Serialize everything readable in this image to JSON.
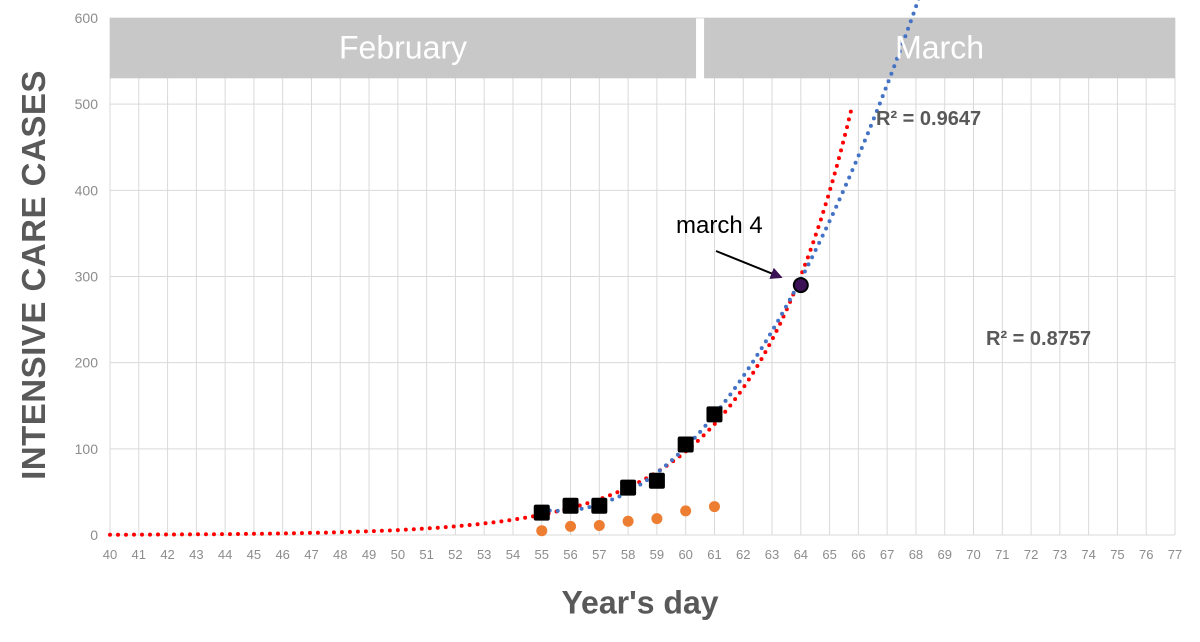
{
  "chart_data": {
    "type": "scatter",
    "title": "",
    "xlabel": "Year's day",
    "ylabel": "INTENSIVE CARE CASES",
    "xlim": [
      40,
      77
    ],
    "ylim": [
      0,
      600
    ],
    "x_ticks": [
      40,
      41,
      42,
      43,
      44,
      45,
      46,
      47,
      48,
      49,
      50,
      51,
      52,
      53,
      54,
      55,
      56,
      57,
      58,
      59,
      60,
      61,
      62,
      63,
      64,
      65,
      66,
      67,
      68,
      69,
      70,
      71,
      72,
      73,
      74,
      75,
      76,
      77
    ],
    "y_ticks": [
      0,
      100,
      200,
      300,
      400,
      500,
      600
    ],
    "grid": true,
    "month_bands": [
      {
        "label": "February",
        "x_range": [
          40,
          60.5
        ]
      },
      {
        "label": "March",
        "x_range": [
          60.5,
          77
        ]
      }
    ],
    "series": [
      {
        "marker": "square",
        "color": "#000000",
        "x": [
          55,
          56,
          57,
          58,
          59,
          60,
          61
        ],
        "y": [
          26,
          34,
          34,
          55,
          63,
          105,
          140
        ]
      },
      {
        "marker": "circle",
        "color": "#ed7d31",
        "x": [
          55,
          56,
          57,
          58,
          59,
          60,
          61
        ],
        "y": [
          5,
          10,
          11,
          16,
          19,
          28,
          33
        ]
      },
      {
        "marker": "circle-highlight",
        "color": "#3b1054",
        "x": [
          64
        ],
        "y": [
          290
        ]
      }
    ],
    "trendlines": [
      {
        "fit": "exponential",
        "color": "#ff0000",
        "style": "dotted",
        "x_range": [
          40,
          66
        ],
        "r2_label": "R² = 0.9647"
      },
      {
        "fit": "polynomial",
        "color": "#4472c4",
        "style": "dotted",
        "x_range": [
          55,
          74.8
        ],
        "r2_label": "R² = 0.8757"
      }
    ],
    "annotations": [
      {
        "text": "march 4",
        "points_to": {
          "x": 64,
          "y": 290
        }
      }
    ]
  },
  "colors": {
    "band": "#c8c8c8",
    "grid": "#d9d9d9",
    "tick_text": "#8c8c8c",
    "axis_text": "#595959"
  }
}
